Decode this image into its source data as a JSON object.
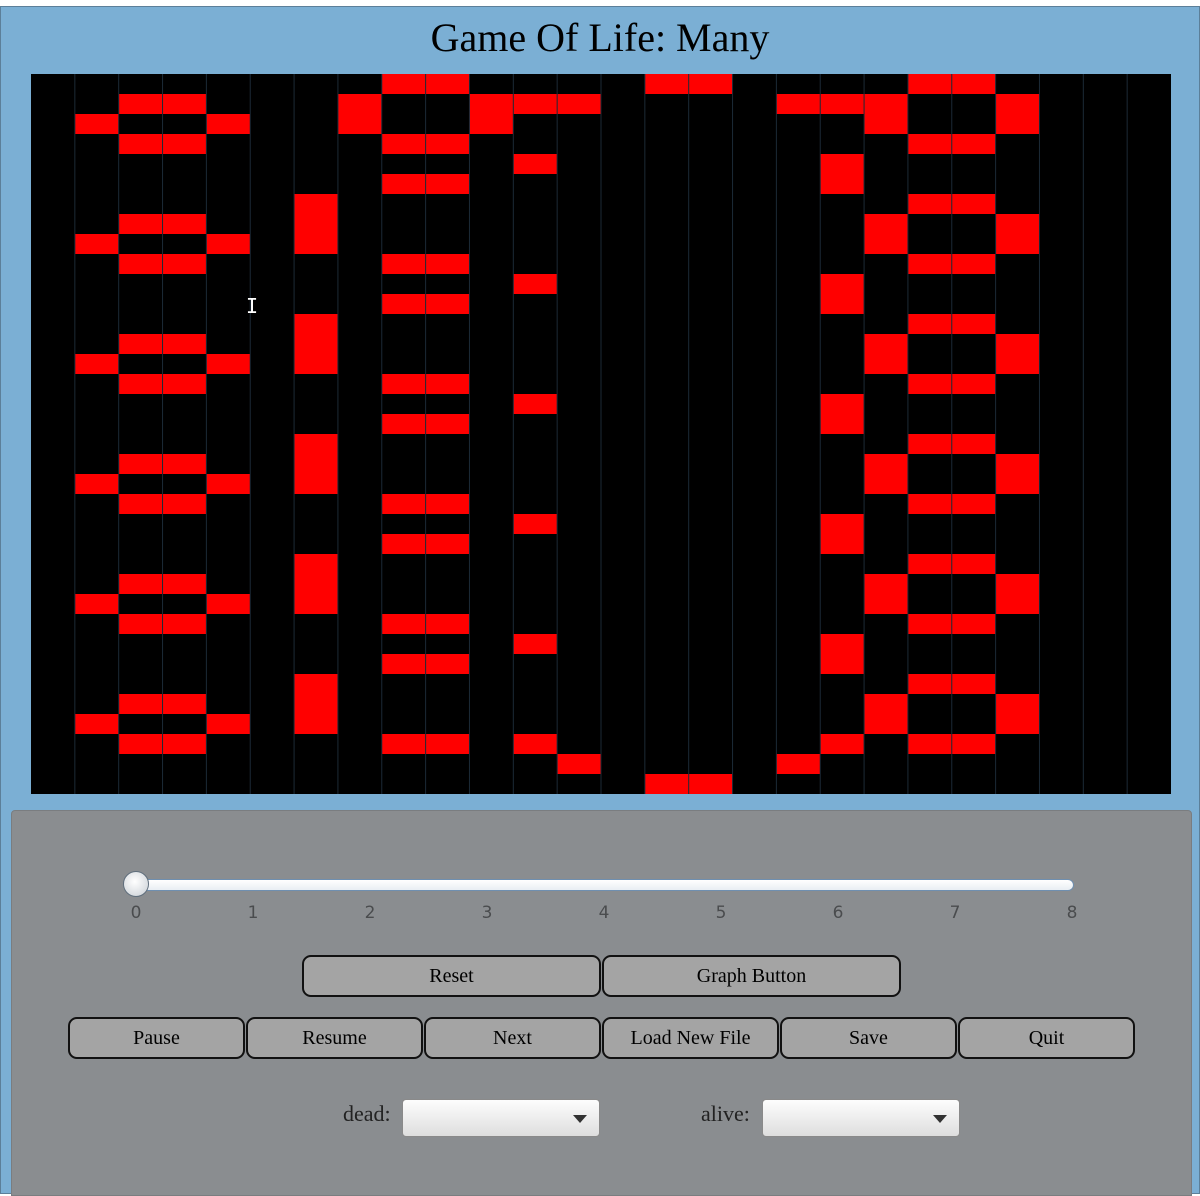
{
  "window": {
    "title": "Game Of Life: Many"
  },
  "colors": {
    "window_bg": "#7bafd4",
    "panel_bg": "#8a8d90",
    "board_bg": "#000000",
    "alive_cell": "#ff0000",
    "grid_line": "#1c2a36",
    "button_bg": "#a4a4a4"
  },
  "board": {
    "cols": 26,
    "rows": 36,
    "alive": [
      [
        8,
        0
      ],
      [
        9,
        0
      ],
      [
        14,
        0
      ],
      [
        15,
        0
      ],
      [
        20,
        0
      ],
      [
        21,
        0
      ],
      [
        2,
        1
      ],
      [
        3,
        1
      ],
      [
        7,
        1
      ],
      [
        10,
        1
      ],
      [
        11,
        1
      ],
      [
        12,
        1
      ],
      [
        17,
        1
      ],
      [
        18,
        1
      ],
      [
        19,
        1
      ],
      [
        22,
        1
      ],
      [
        1,
        2
      ],
      [
        4,
        2
      ],
      [
        7,
        2
      ],
      [
        10,
        2
      ],
      [
        19,
        2
      ],
      [
        22,
        2
      ],
      [
        2,
        3
      ],
      [
        3,
        3
      ],
      [
        8,
        3
      ],
      [
        9,
        3
      ],
      [
        20,
        3
      ],
      [
        21,
        3
      ],
      [
        11,
        4
      ],
      [
        18,
        4
      ],
      [
        8,
        5
      ],
      [
        9,
        5
      ],
      [
        18,
        5
      ],
      [
        6,
        6
      ],
      [
        20,
        6
      ],
      [
        21,
        6
      ],
      [
        2,
        7
      ],
      [
        3,
        7
      ],
      [
        6,
        7
      ],
      [
        19,
        7
      ],
      [
        22,
        7
      ],
      [
        1,
        8
      ],
      [
        4,
        8
      ],
      [
        6,
        8
      ],
      [
        19,
        8
      ],
      [
        22,
        8
      ],
      [
        2,
        9
      ],
      [
        3,
        9
      ],
      [
        8,
        9
      ],
      [
        9,
        9
      ],
      [
        20,
        9
      ],
      [
        21,
        9
      ],
      [
        11,
        10
      ],
      [
        18,
        10
      ],
      [
        8,
        11
      ],
      [
        9,
        11
      ],
      [
        18,
        11
      ],
      [
        6,
        12
      ],
      [
        20,
        12
      ],
      [
        21,
        12
      ],
      [
        2,
        13
      ],
      [
        3,
        13
      ],
      [
        6,
        13
      ],
      [
        19,
        13
      ],
      [
        22,
        13
      ],
      [
        1,
        14
      ],
      [
        4,
        14
      ],
      [
        6,
        14
      ],
      [
        19,
        14
      ],
      [
        22,
        14
      ],
      [
        2,
        15
      ],
      [
        3,
        15
      ],
      [
        8,
        15
      ],
      [
        9,
        15
      ],
      [
        20,
        15
      ],
      [
        21,
        15
      ],
      [
        11,
        16
      ],
      [
        18,
        16
      ],
      [
        8,
        17
      ],
      [
        9,
        17
      ],
      [
        18,
        17
      ],
      [
        6,
        18
      ],
      [
        20,
        18
      ],
      [
        21,
        18
      ],
      [
        2,
        19
      ],
      [
        3,
        19
      ],
      [
        6,
        19
      ],
      [
        19,
        19
      ],
      [
        22,
        19
      ],
      [
        1,
        20
      ],
      [
        4,
        20
      ],
      [
        6,
        20
      ],
      [
        19,
        20
      ],
      [
        22,
        20
      ],
      [
        2,
        21
      ],
      [
        3,
        21
      ],
      [
        8,
        21
      ],
      [
        9,
        21
      ],
      [
        20,
        21
      ],
      [
        21,
        21
      ],
      [
        11,
        22
      ],
      [
        18,
        22
      ],
      [
        8,
        23
      ],
      [
        9,
        23
      ],
      [
        18,
        23
      ],
      [
        6,
        24
      ],
      [
        20,
        24
      ],
      [
        21,
        24
      ],
      [
        2,
        25
      ],
      [
        3,
        25
      ],
      [
        6,
        25
      ],
      [
        19,
        25
      ],
      [
        22,
        25
      ],
      [
        1,
        26
      ],
      [
        4,
        26
      ],
      [
        6,
        26
      ],
      [
        19,
        26
      ],
      [
        22,
        26
      ],
      [
        2,
        27
      ],
      [
        3,
        27
      ],
      [
        8,
        27
      ],
      [
        9,
        27
      ],
      [
        20,
        27
      ],
      [
        21,
        27
      ],
      [
        11,
        28
      ],
      [
        18,
        28
      ],
      [
        8,
        29
      ],
      [
        9,
        29
      ],
      [
        18,
        29
      ],
      [
        6,
        30
      ],
      [
        20,
        30
      ],
      [
        21,
        30
      ],
      [
        2,
        31
      ],
      [
        3,
        31
      ],
      [
        6,
        31
      ],
      [
        19,
        31
      ],
      [
        22,
        31
      ],
      [
        1,
        32
      ],
      [
        4,
        32
      ],
      [
        6,
        32
      ],
      [
        19,
        32
      ],
      [
        22,
        32
      ],
      [
        2,
        33
      ],
      [
        3,
        33
      ],
      [
        8,
        33
      ],
      [
        9,
        33
      ],
      [
        11,
        33
      ],
      [
        18,
        33
      ],
      [
        20,
        33
      ],
      [
        21,
        33
      ],
      [
        12,
        34
      ],
      [
        17,
        34
      ],
      [
        14,
        35
      ],
      [
        15,
        35
      ]
    ]
  },
  "slider": {
    "min": 0,
    "max": 8,
    "value": 0,
    "tick_labels": [
      "0",
      "1",
      "2",
      "3",
      "4",
      "5",
      "6",
      "7",
      "8"
    ]
  },
  "buttons": {
    "reset": "Reset",
    "graph": "Graph Button",
    "pause": "Pause",
    "resume": "Resume",
    "next": "Next",
    "load": "Load New File",
    "save": "Save",
    "quit": "Quit"
  },
  "dead_combo": {
    "label": "dead:",
    "value": ""
  },
  "alive_combo": {
    "label": "alive:",
    "value": ""
  },
  "icons": {
    "cursor": "text-cursor-icon",
    "dropdown": "chevron-down-icon"
  }
}
